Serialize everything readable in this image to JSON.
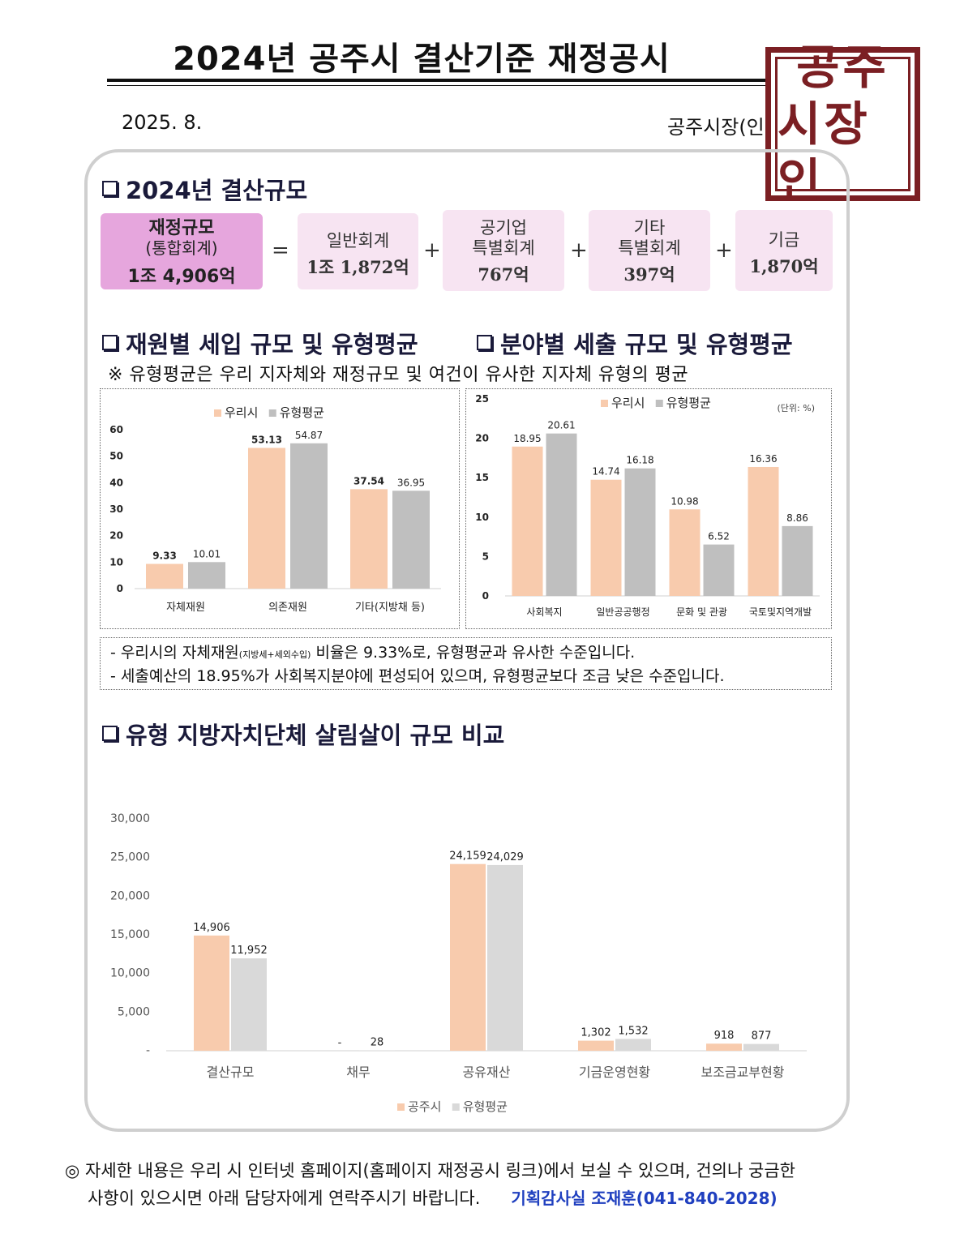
{
  "title": "2024년 공주시 결산기준 재정공시",
  "date": "2025. 8.",
  "mayor": "공주시장(인)",
  "seal_text": [
    "공주",
    "시장인"
  ],
  "sections": {
    "scale": "2024년 결산규모",
    "revenue": "재원별 세입 규모 및 유형평균",
    "expenditure": "분야별 세출 규모 및 유형평균",
    "compare": "유형 지방자치단체 살림살이 규모 비교"
  },
  "scale_cards": {
    "total": {
      "l1": "재정규모",
      "l2": "(통합회계)",
      "value": "1조 4,906억"
    },
    "general": {
      "l1": "일반회계",
      "value": "1조 1,872억"
    },
    "public": {
      "l1": "공기업",
      "l2": "특별회계",
      "value": "767억"
    },
    "other": {
      "l1": "기타",
      "l2": "특별회계",
      "value": "397억"
    },
    "fund": {
      "l1": "기금",
      "value": "1,870억"
    },
    "ops": {
      "eq": "=",
      "plus": "+"
    }
  },
  "note": "※ 유형평균은 우리 지자체와 재정규모 및 여건이 유사한 지자체 유형의 평균",
  "notes": {
    "line1_a": "-  우리시의 자체재원",
    "line1_small": "(지방세+세외수입)",
    "line1_b": " 비율은 9.33%로, 유형평균과 유사한 수준입니다.",
    "line2": "-  세출예산의 18.95%가 사회복지분야에 편성되어 있으며, 유형평균보다 조금 낮은 수준입니다."
  },
  "footer": {
    "line1": "◎  자세한 내용은 우리 시 인터넷 홈페이지(홈페이지 재정공시 링크)에서 보실 수 있으며, 건의나 궁금한",
    "line2": "사항이 있으시면 아래 담당자에게 연락주시기 바랍니다.",
    "contact": "기획감사실 조재훈(041-840-2028)"
  },
  "colors": {
    "ours": "#f8cbad",
    "avg_dark": "#bfbfbf",
    "avg_light": "#d9d9d9",
    "card": "#f7e4f2",
    "card_total": "#e6a6dd"
  },
  "chart_data": [
    {
      "type": "bar",
      "categories": [
        "자체재원",
        "의존재원",
        "기타(지방채 등)"
      ],
      "series": [
        {
          "name": "우리시",
          "values": [
            9.33,
            53.13,
            37.54
          ],
          "labels": [
            "9.33",
            "53.13",
            "37.54"
          ]
        },
        {
          "name": "유형평균",
          "values": [
            10.01,
            54.87,
            36.95
          ],
          "labels": [
            "10.01",
            "54.87",
            "36.95"
          ]
        }
      ],
      "yticks": [
        "0",
        "10",
        "20",
        "30",
        "40",
        "50",
        "60"
      ],
      "ylim": [
        0,
        60
      ],
      "legend": "top",
      "grid": false
    },
    {
      "type": "bar",
      "unit": "(단위: %)",
      "categories": [
        "사회복지",
        "일반공공행정",
        "문화 및 관광",
        "국토및지역개발"
      ],
      "series": [
        {
          "name": "우리시",
          "values": [
            18.95,
            14.74,
            10.98,
            16.36
          ],
          "labels": [
            "18.95",
            "14.74",
            "10.98",
            "16.36"
          ]
        },
        {
          "name": "유형평균",
          "values": [
            20.61,
            16.18,
            6.52,
            8.86
          ],
          "labels": [
            "20.61",
            "16.18",
            "6.52",
            "8.86"
          ]
        }
      ],
      "yticks": [
        "0",
        "5",
        "10",
        "15",
        "20",
        "25"
      ],
      "ylim": [
        0,
        25
      ],
      "legend": "top",
      "grid": false
    },
    {
      "type": "bar",
      "categories": [
        "결산규모",
        "채무",
        "공유재산",
        "기금운영현황",
        "보조금교부현황"
      ],
      "series": [
        {
          "name": "공주시",
          "values": [
            14906,
            0,
            24159,
            1302,
            918
          ],
          "labels": [
            "14,906",
            "-",
            "24,159",
            "1,302",
            "918"
          ]
        },
        {
          "name": "유형평균",
          "values": [
            11952,
            28,
            24029,
            1532,
            877
          ],
          "labels": [
            "11,952",
            "28",
            "24,029",
            "1,532",
            "877"
          ]
        }
      ],
      "yticks": [
        "-",
        "5,000",
        "10,000",
        "15,000",
        "20,000",
        "25,000",
        "30,000"
      ],
      "ylim": [
        0,
        30000
      ],
      "legend": "bottom",
      "grid": false
    }
  ]
}
